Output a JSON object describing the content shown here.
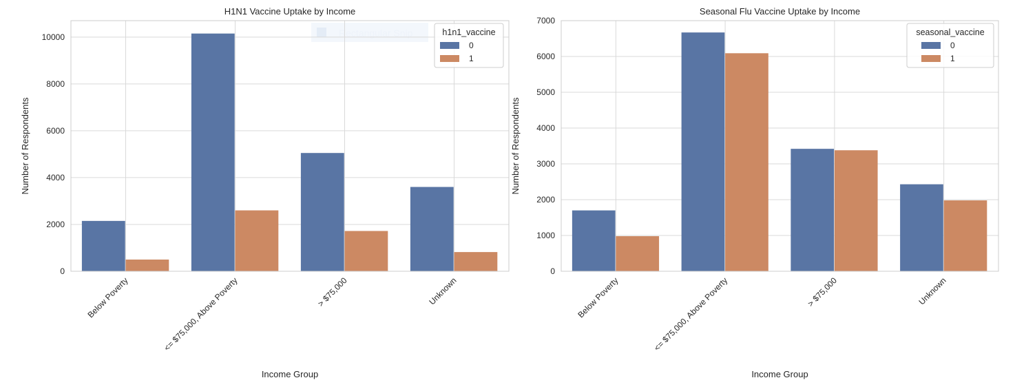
{
  "chart_data": [
    {
      "type": "bar",
      "title": "H1N1 Vaccine Uptake by Income",
      "xlabel": "Income Group",
      "ylabel": "Number of Respondents",
      "categories": [
        "Below Poverty",
        "<= $75,000, Above Poverty",
        "> $75,000",
        "Unknown"
      ],
      "ylim": [
        0,
        10700
      ],
      "yticks": [
        0,
        2000,
        4000,
        6000,
        8000,
        10000
      ],
      "grid": true,
      "legend": {
        "title": "h1n1_vaccine",
        "placement": "top-right"
      },
      "series": [
        {
          "name": "0",
          "color": "#5975a4",
          "values": [
            2150,
            10150,
            5050,
            3600
          ]
        },
        {
          "name": "1",
          "color": "#cc8963",
          "values": [
            500,
            2600,
            1720,
            820
          ]
        }
      ]
    },
    {
      "type": "bar",
      "title": "Seasonal Flu Vaccine Uptake by Income",
      "xlabel": "Income Group",
      "ylabel": "Number of Respondents",
      "categories": [
        "Below Poverty",
        "<= $75,000, Above Poverty",
        "> $75,000",
        "Unknown"
      ],
      "ylim": [
        0,
        7000
      ],
      "yticks": [
        0,
        1000,
        2000,
        3000,
        4000,
        5000,
        6000,
        7000
      ],
      "grid": true,
      "legend": {
        "title": "seasonal_vaccine",
        "placement": "top-right"
      },
      "series": [
        {
          "name": "0",
          "color": "#5975a4",
          "values": [
            1700,
            6670,
            3420,
            2430
          ]
        },
        {
          "name": "1",
          "color": "#cc8963",
          "values": [
            980,
            6090,
            3380,
            1980
          ]
        }
      ]
    }
  ],
  "overlay": {
    "text": "Rectangular Snip"
  }
}
